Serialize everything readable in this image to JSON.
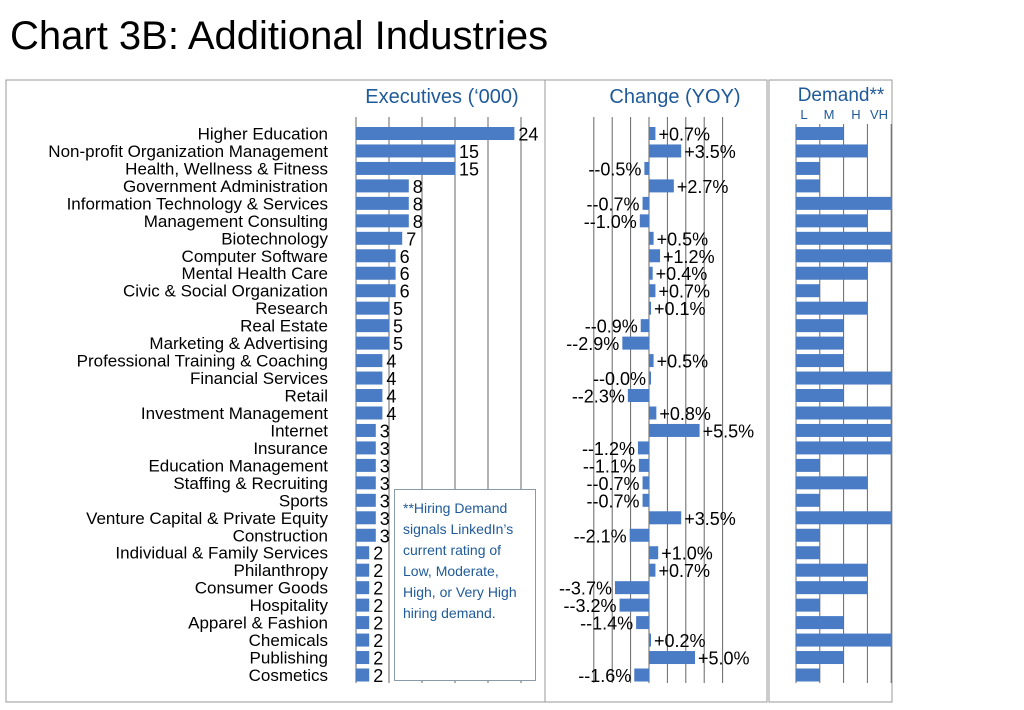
{
  "title": "Chart 3B: Additional Industries",
  "note": "**Hiring Demand signals LinkedIn’s current rating of Low, Moderate, High, or Very High hiring demand.",
  "colors": {
    "bar": "#4a7cc6",
    "header": "#1f5a9a",
    "grid": "#666666",
    "frame": "#999999"
  },
  "chart_data": {
    "type": "bar",
    "orientation": "horizontal",
    "title": "Chart 3B: Additional Industries",
    "categories": [
      "Higher Education",
      "Non-profit Organization Management",
      "Health, Wellness & Fitness",
      "Government Administration",
      "Information Technology & Services",
      "Management Consulting",
      "Biotechnology",
      "Computer Software",
      "Mental Health Care",
      "Civic & Social Organization",
      "Research",
      "Real Estate",
      "Marketing & Advertising",
      "Professional Training & Coaching",
      "Financial Services",
      "Retail",
      "Investment Management",
      "Internet",
      "Insurance",
      "Education Management",
      "Staffing & Recruiting",
      "Sports",
      "Venture Capital & Private Equity",
      "Construction",
      "Individual & Family Services",
      "Philanthropy",
      "Consumer Goods",
      "Hospitality",
      "Apparel & Fashion",
      "Chemicals",
      "Publishing",
      "Cosmetics"
    ],
    "panels": [
      {
        "name": "Executives (‘000)",
        "values": [
          24,
          15,
          15,
          8,
          8,
          8,
          7,
          6,
          6,
          6,
          5,
          5,
          5,
          4,
          4,
          4,
          4,
          3,
          3,
          3,
          3,
          3,
          3,
          3,
          2,
          2,
          2,
          2,
          2,
          2,
          2,
          2
        ],
        "labels": [
          "24",
          "15",
          "15",
          "8",
          "8",
          "8",
          "7",
          "6",
          "6",
          "6",
          "5",
          "5",
          "5",
          "4",
          "4",
          "4",
          "4",
          "3",
          "3",
          "3",
          "3",
          "3",
          "3",
          "3",
          "2",
          "2",
          "2",
          "2",
          "2",
          "2",
          "2",
          "2"
        ],
        "xlim": [
          0,
          25
        ]
      },
      {
        "name": "Change (YOY)",
        "values": [
          0.7,
          3.5,
          -0.5,
          2.7,
          -0.7,
          -1.0,
          0.5,
          1.2,
          0.4,
          0.7,
          0.1,
          -0.9,
          -2.9,
          0.5,
          -0.0,
          -2.3,
          0.8,
          5.5,
          -1.2,
          -1.1,
          -0.7,
          -0.7,
          3.5,
          -2.1,
          1.0,
          0.7,
          -3.7,
          -3.2,
          -1.4,
          0.2,
          5.0,
          -1.6
        ],
        "labels": [
          "+0.7%",
          "+3.5%",
          "--0.5%",
          "+2.7%",
          "--0.7%",
          "--1.0%",
          "+0.5%",
          "+1.2%",
          "+0.4%",
          "+0.7%",
          "+0.1%",
          "--0.9%",
          "--2.9%",
          "+0.5%",
          "--0.0%",
          "--2.3%",
          "+0.8%",
          "+5.5%",
          "--1.2%",
          "--1.1%",
          "--0.7%",
          "--0.7%",
          "+3.5%",
          "--2.1%",
          "+1.0%",
          "+0.7%",
          "--3.7%",
          "--3.2%",
          "--1.4%",
          "+0.2%",
          "+5.0%",
          "--1.6%"
        ],
        "xlim": [
          -6,
          8
        ]
      },
      {
        "name": "Demand**",
        "scale_labels": [
          "L",
          "M",
          "H",
          "VH"
        ],
        "values": [
          2,
          3,
          1,
          1,
          4,
          3,
          4,
          4,
          3,
          1,
          3,
          2,
          2,
          2,
          4,
          2,
          4,
          4,
          4,
          1,
          3,
          1,
          4,
          1,
          1,
          3,
          3,
          1,
          2,
          4,
          2,
          1
        ],
        "xlim": [
          0,
          4
        ]
      }
    ]
  }
}
